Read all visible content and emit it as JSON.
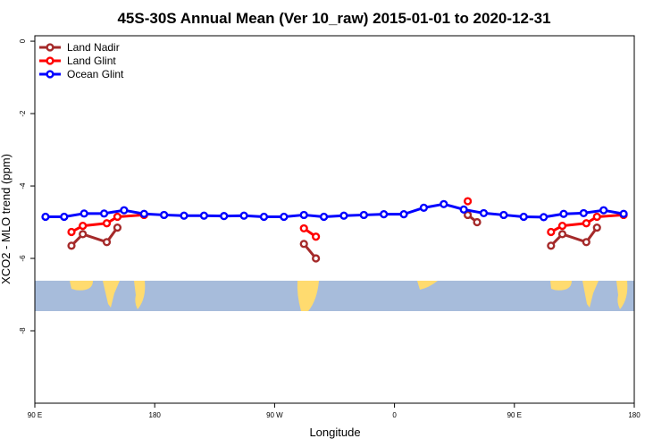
{
  "chart_data": {
    "type": "line",
    "title": "45S-30S Annual Mean (Ver 10_raw)   2015-01-01 to 2020-12-31",
    "xlabel": "Longitude",
    "ylabel": "XCO2 - MLO trend (ppm)",
    "xlim": [
      90,
      540
    ],
    "ylim": [
      -10,
      0.15
    ],
    "y_ticks": [
      0,
      -2,
      -4,
      -6,
      -8
    ],
    "y_tick_labels": [
      "0",
      "-2",
      "-4",
      "-6",
      "-8"
    ],
    "x_ticks": [
      90,
      180,
      270,
      360,
      450,
      540
    ],
    "x_tick_labels": [
      "90 E",
      "180",
      "90 W",
      "0",
      "90 E",
      "180"
    ],
    "legend": {
      "placement": "top-left"
    },
    "grid": false,
    "series": [
      {
        "name": "Land Nadir",
        "color": "#a52a2a",
        "segments": [
          [
            [
              117.5,
              -5.65
            ],
            [
              126,
              -5.33
            ],
            [
              144,
              -5.55
            ],
            [
              152,
              -5.15
            ]
          ],
          [
            [
              292,
              -5.6
            ],
            [
              301,
              -6.0
            ]
          ],
          [
            [
              415,
              -4.8
            ],
            [
              422,
              -5.0
            ]
          ],
          [
            [
              477.5,
              -5.65
            ],
            [
              486,
              -5.33
            ],
            [
              504,
              -5.55
            ],
            [
              512,
              -5.15
            ]
          ]
        ]
      },
      {
        "name": "Land Glint",
        "color": "#ff0000",
        "segments": [
          [
            [
              117.5,
              -5.27
            ],
            [
              126,
              -5.1
            ],
            [
              144,
              -5.03
            ],
            [
              152,
              -4.85
            ],
            [
              172,
              -4.8
            ]
          ],
          [
            [
              292,
              -5.17
            ],
            [
              301,
              -5.4
            ]
          ],
          [
            [
              415,
              -4.42
            ]
          ],
          [
            [
              477.5,
              -5.27
            ],
            [
              486,
              -5.1
            ],
            [
              504,
              -5.03
            ],
            [
              512,
              -4.85
            ],
            [
              532,
              -4.8
            ]
          ]
        ]
      },
      {
        "name": "Ocean Glint",
        "color": "#0000ff",
        "segments": [
          [
            [
              98,
              -4.85
            ],
            [
              112,
              -4.85
            ],
            [
              127,
              -4.76
            ],
            [
              142,
              -4.76
            ],
            [
              157,
              -4.67
            ],
            [
              172,
              -4.77
            ],
            [
              187,
              -4.8
            ],
            [
              202,
              -4.82
            ],
            [
              217,
              -4.82
            ],
            [
              232,
              -4.83
            ],
            [
              247,
              -4.82
            ],
            [
              262,
              -4.85
            ],
            [
              277,
              -4.85
            ],
            [
              292,
              -4.8
            ],
            [
              307,
              -4.85
            ],
            [
              322,
              -4.82
            ],
            [
              337,
              -4.8
            ],
            [
              352,
              -4.78
            ],
            [
              367,
              -4.78
            ],
            [
              382,
              -4.6
            ],
            [
              397,
              -4.5
            ],
            [
              412,
              -4.65
            ],
            [
              427,
              -4.75
            ],
            [
              442,
              -4.8
            ],
            [
              457,
              -4.85
            ],
            [
              472,
              -4.86
            ],
            [
              487,
              -4.77
            ],
            [
              502,
              -4.75
            ],
            [
              517,
              -4.67
            ],
            [
              532,
              -4.77
            ]
          ]
        ]
      }
    ]
  }
}
